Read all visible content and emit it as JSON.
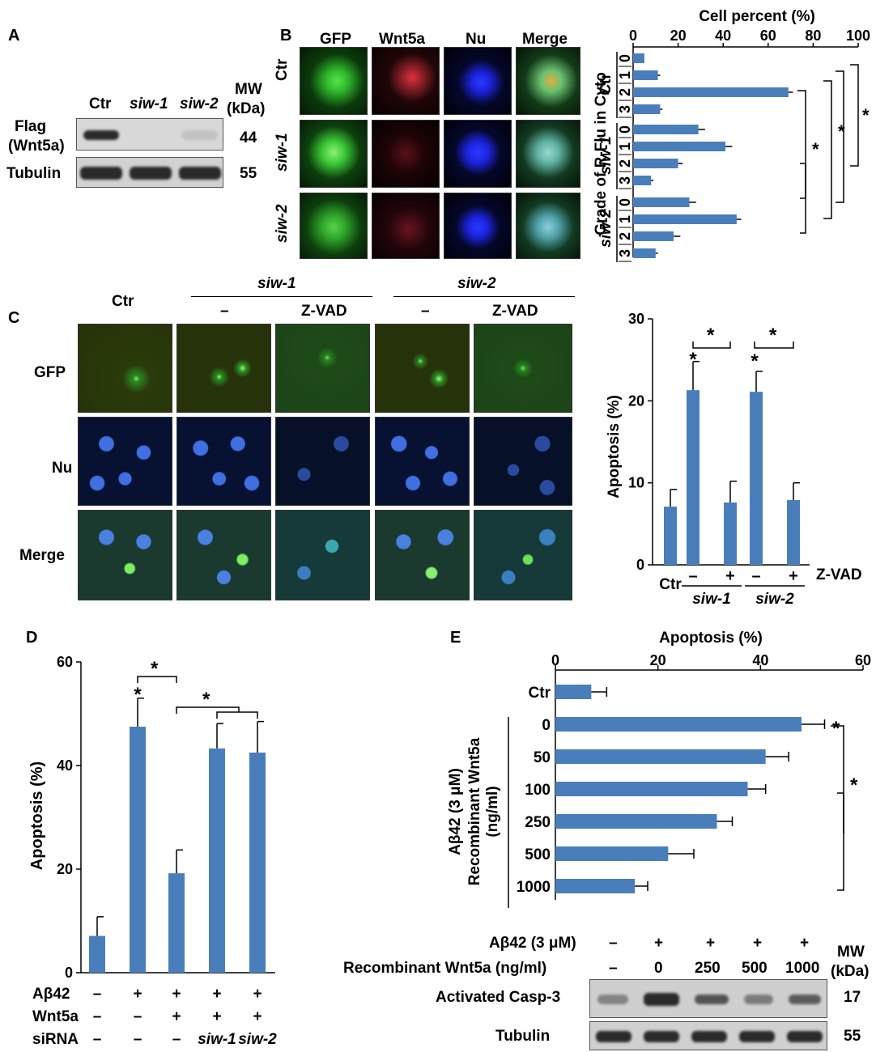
{
  "panelA": {
    "letter": "A",
    "lanes": [
      "Ctr",
      "siw-1",
      "siw-2"
    ],
    "mw_header": "MW",
    "mw_unit": "(kDa)",
    "rows": [
      {
        "label1": "Flag",
        "label2": "(Wnt5a)",
        "mw": "44",
        "intensity": [
          1.0,
          0.0,
          0.12
        ]
      },
      {
        "label": "Tubulin",
        "mw": "55",
        "intensity": [
          1.0,
          1.0,
          1.0
        ]
      }
    ]
  },
  "panelB": {
    "letter": "B",
    "columns": [
      "GFP",
      "Wnt5a",
      "Nu",
      "Merge"
    ],
    "rows": [
      "Ctr",
      "siw-1",
      "siw-2"
    ],
    "colors": {
      "gfp": "#2fb82b",
      "wnt5a": "#c8202a",
      "nu": "#1b24e0",
      "merge": "#7ab9a8"
    },
    "chart_data": {
      "type": "bar",
      "orientation": "horizontal",
      "xlabel": "Cell percent (%)",
      "ylabel": "Grade of R-Flu in Cyto",
      "xlim": [
        0,
        100
      ],
      "xticks": [
        0,
        20,
        40,
        60,
        80,
        100
      ],
      "groups": [
        "Ctr",
        "siw-1",
        "siw-2"
      ],
      "grades": [
        "0",
        "1",
        "2",
        "3"
      ],
      "values": [
        [
          5,
          11,
          69,
          12
        ],
        [
          29,
          41,
          20,
          8
        ],
        [
          25,
          46,
          18,
          10
        ]
      ],
      "errors": [
        [
          0,
          1,
          2,
          1
        ],
        [
          3,
          3,
          2,
          1
        ],
        [
          3,
          2,
          3,
          1
        ]
      ],
      "significance": "*"
    }
  },
  "panelC": {
    "letter": "C",
    "column_headers": {
      "ctr": "Ctr",
      "siw1": "siw-1",
      "siw2": "siw-2",
      "minus": "–",
      "zvad": "Z-VAD"
    },
    "rows": [
      "GFP",
      "Nu",
      "Merge"
    ],
    "chart_data": {
      "type": "bar",
      "ylabel": "Apoptosis (%)",
      "ylim": [
        0,
        30
      ],
      "yticks": [
        0,
        10,
        20,
        30
      ],
      "categories": [
        "Ctr",
        "siw-1 –",
        "siw-1 +",
        "siw-2 –",
        "siw-2 +"
      ],
      "values": [
        7.1,
        21.3,
        7.6,
        21.1,
        7.9
      ],
      "errors": [
        2.1,
        3.5,
        2.6,
        2.5,
        2.1
      ],
      "x_labels": {
        "ctr": "Ctr",
        "minus": "–",
        "plus": "+",
        "g1": "siw-1",
        "g2": "siw-2",
        "treatment": "Z-VAD"
      },
      "significance": "*"
    }
  },
  "panelD": {
    "letter": "D",
    "chart_data": {
      "type": "bar",
      "ylabel": "Apoptosis (%)",
      "ylim": [
        0,
        60
      ],
      "yticks": [
        0,
        20,
        40,
        60
      ],
      "values": [
        7.1,
        47.5,
        19.2,
        43.3,
        42.5
      ],
      "errors": [
        3.7,
        5.5,
        4.5,
        4.8,
        6.0
      ],
      "row_labels": [
        "Aβ42",
        "Wnt5a",
        "siRNA"
      ],
      "row_values": [
        [
          "–",
          "+",
          "+",
          "+",
          "+"
        ],
        [
          "–",
          "–",
          "+",
          "+",
          "+"
        ],
        [
          "–",
          "–",
          "–",
          "siw-1",
          "siw-2"
        ]
      ],
      "significance": "*"
    }
  },
  "panelE": {
    "letter": "E",
    "chart_data": {
      "type": "bar",
      "orientation": "horizontal",
      "xlabel": "Apoptosis (%)",
      "xlim": [
        0,
        60
      ],
      "xticks": [
        0,
        20,
        40,
        60
      ],
      "categories": [
        "Ctr",
        "0",
        "50",
        "100",
        "250",
        "500",
        "1000"
      ],
      "values": [
        7,
        48,
        41,
        37.5,
        31.5,
        22,
        15.5
      ],
      "errors": [
        3,
        4.5,
        4.5,
        3.5,
        3,
        5,
        2.5
      ],
      "group_label1": "Aβ42 (3 μM)",
      "group_label2": "Recombinant Wnt5a",
      "group_label3": "(ng/ml)",
      "significance": "*"
    },
    "blot": {
      "row1_label": "Aβ42 (3 μM)",
      "row1_values": [
        "–",
        "+",
        "+",
        "+",
        "+"
      ],
      "row2_label": "Recombinant Wnt5a (ng/ml)",
      "row2_values": [
        "–",
        "0",
        "250",
        "500",
        "1000"
      ],
      "mw_header": "MW",
      "mw_unit": "(kDa)",
      "bands": [
        {
          "label": "Activated Casp-3",
          "mw": "17",
          "intensity": [
            0.45,
            1.0,
            0.75,
            0.5,
            0.7
          ]
        },
        {
          "label": "Tubulin",
          "mw": "55",
          "intensity": [
            1.0,
            1.0,
            1.0,
            1.0,
            1.0
          ]
        }
      ]
    }
  }
}
